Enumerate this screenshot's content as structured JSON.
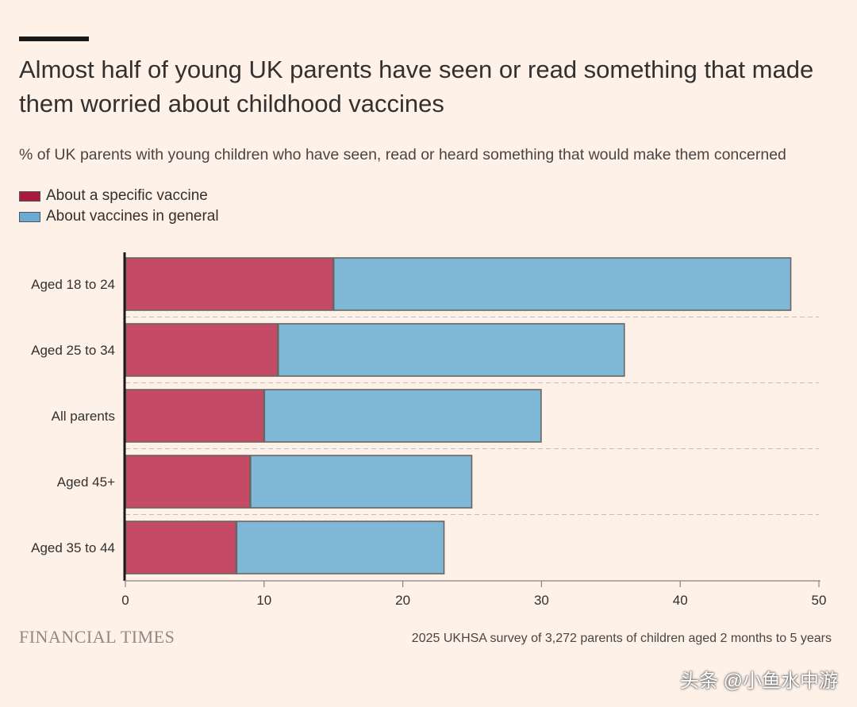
{
  "headline": "Almost half of young UK parents have seen or read something that made them worried about childhood vaccines",
  "subheadline": "% of UK parents with young children who have seen, read or heard something that would make them concerned",
  "legend": {
    "specific": "About a specific vaccine",
    "general": "About vaccines in general"
  },
  "colors": {
    "specific": "#c44a66",
    "general": "#7fb7d6",
    "background": "#fdf1e8"
  },
  "chart_data": {
    "type": "bar",
    "orientation": "horizontal",
    "stacked": true,
    "categories": [
      "Aged 18 to 24",
      "Aged 25 to 34",
      "All parents",
      "Aged 45+",
      "Aged 35 to 44"
    ],
    "series": [
      {
        "name": "About a specific vaccine",
        "values": [
          15,
          11,
          10,
          9,
          8
        ]
      },
      {
        "name": "About vaccines in general",
        "values": [
          33,
          25,
          20,
          16,
          15
        ]
      }
    ],
    "xlim": [
      0,
      50
    ],
    "xticks": [
      0,
      10,
      20,
      30,
      40,
      50
    ],
    "title": "Almost half of young UK parents have seen or read something that made them worried about childhood vaccines",
    "xlabel": "",
    "ylabel": ""
  },
  "footer": {
    "brand": "FINANCIAL TIMES",
    "source": "2025 UKHSA survey of 3,272 parents of children aged 2 months to 5 years",
    "watermark": "头条 @小鱼水中游"
  }
}
